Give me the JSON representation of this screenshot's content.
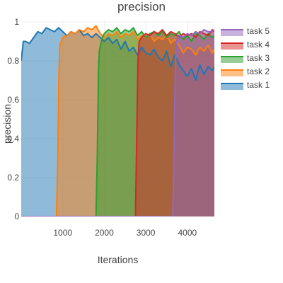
{
  "chart_data": {
    "type": "area",
    "title": "precision",
    "xlabel": "Iterations",
    "ylabel": "precision",
    "xlim": [
      0,
      4650
    ],
    "ylim": [
      0,
      1
    ],
    "x_ticks": [
      1000,
      2000,
      3000,
      4000
    ],
    "x_tick_labels": [
      "1000",
      "2000",
      "3000",
      "4000"
    ],
    "y_ticks": [
      0,
      0.2,
      0.4,
      0.6,
      0.8,
      1
    ],
    "y_tick_labels": [
      "0",
      "0.2",
      "0.4",
      "0.6",
      "0.8",
      "1"
    ],
    "grid": true,
    "legend_position": "right",
    "series": [
      {
        "name": "task 1",
        "color": "#1f77b4",
        "fill": "rgba(31,119,180,0.5)",
        "x": [
          0,
          50,
          100,
          200,
          300,
          400,
          500,
          600,
          700,
          800,
          900,
          1000,
          1100,
          1200,
          1300,
          1400,
          1500,
          1600,
          1700,
          1800,
          1900,
          2000,
          2100,
          2200,
          2300,
          2400,
          2500,
          2600,
          2700,
          2800,
          2900,
          3000,
          3100,
          3200,
          3300,
          3400,
          3500,
          3600,
          3700,
          3800,
          3900,
          4000,
          4100,
          4200,
          4300,
          4400,
          4500,
          4600,
          4650
        ],
        "y": [
          0.8,
          0.9,
          0.9,
          0.89,
          0.92,
          0.95,
          0.94,
          0.97,
          0.96,
          0.95,
          0.97,
          0.95,
          0.93,
          0.95,
          0.94,
          0.96,
          0.93,
          0.94,
          0.92,
          0.94,
          0.92,
          0.9,
          0.92,
          0.89,
          0.91,
          0.86,
          0.9,
          0.85,
          0.87,
          0.83,
          0.87,
          0.84,
          0.83,
          0.86,
          0.82,
          0.8,
          0.85,
          0.77,
          0.83,
          0.78,
          0.75,
          0.72,
          0.76,
          0.7,
          0.78,
          0.73,
          0.77,
          0.75,
          0.77
        ]
      },
      {
        "name": "task 2",
        "color": "#ff7f0e",
        "fill": "rgba(255,127,14,0.5)",
        "x": [
          0,
          850,
          880,
          910,
          930,
          1000,
          1100,
          1200,
          1300,
          1400,
          1500,
          1600,
          1700,
          1800,
          1900,
          2000,
          2100,
          2200,
          2300,
          2400,
          2500,
          2600,
          2700,
          2800,
          2900,
          3000,
          3100,
          3200,
          3300,
          3400,
          3500,
          3600,
          3700,
          3800,
          3900,
          4000,
          4100,
          4200,
          4300,
          4400,
          4500,
          4600,
          4650
        ],
        "y": [
          0,
          0,
          0.3,
          0.75,
          0.88,
          0.92,
          0.93,
          0.95,
          0.94,
          0.96,
          0.95,
          0.97,
          0.96,
          0.98,
          0.94,
          0.92,
          0.94,
          0.93,
          0.95,
          0.92,
          0.94,
          0.93,
          0.95,
          0.91,
          0.93,
          0.92,
          0.94,
          0.9,
          0.92,
          0.91,
          0.93,
          0.89,
          0.91,
          0.88,
          0.84,
          0.87,
          0.86,
          0.83,
          0.87,
          0.85,
          0.88,
          0.84,
          0.86
        ]
      },
      {
        "name": "task 3",
        "color": "#2ca02c",
        "fill": "rgba(44,160,44,0.5)",
        "x": [
          0,
          1800,
          1830,
          1860,
          1880,
          1950,
          2000,
          2100,
          2200,
          2300,
          2400,
          2500,
          2600,
          2700,
          2800,
          2900,
          3000,
          3100,
          3200,
          3300,
          3400,
          3500,
          3600,
          3700,
          3800,
          3900,
          4000,
          4100,
          4200,
          4300,
          4400,
          4500,
          4600,
          4650
        ],
        "y": [
          0,
          0,
          0.3,
          0.75,
          0.85,
          0.92,
          0.94,
          0.96,
          0.95,
          0.97,
          0.94,
          0.96,
          0.95,
          0.97,
          0.93,
          0.95,
          0.92,
          0.94,
          0.95,
          0.93,
          0.95,
          0.92,
          0.94,
          0.93,
          0.95,
          0.91,
          0.93,
          0.9,
          0.94,
          0.93,
          0.91,
          0.94,
          0.92,
          0.93
        ]
      },
      {
        "name": "task 4",
        "color": "#d62728",
        "fill": "rgba(214,39,40,0.5)",
        "x": [
          0,
          2750,
          2780,
          2810,
          2840,
          2900,
          3000,
          3100,
          3200,
          3300,
          3400,
          3500,
          3600,
          3700,
          3800,
          3900,
          4000,
          4100,
          4200,
          4300,
          4400,
          4500,
          4600,
          4650
        ],
        "y": [
          0,
          0,
          0.4,
          0.8,
          0.9,
          0.92,
          0.94,
          0.93,
          0.95,
          0.94,
          0.96,
          0.93,
          0.95,
          0.94,
          0.92,
          0.94,
          0.93,
          0.94,
          0.92,
          0.95,
          0.94,
          0.93,
          0.96,
          0.95
        ]
      },
      {
        "name": "task 5",
        "color": "#9467bd",
        "fill": "rgba(148,103,189,0.5)",
        "x": [
          0,
          3650,
          3680,
          3710,
          3740,
          3800,
          3900,
          4000,
          4100,
          4200,
          4300,
          4400,
          4500,
          4600,
          4650
        ],
        "y": [
          0,
          0,
          0.35,
          0.78,
          0.9,
          0.93,
          0.92,
          0.94,
          0.93,
          0.95,
          0.94,
          0.96,
          0.95,
          0.95,
          0.96
        ]
      }
    ]
  }
}
